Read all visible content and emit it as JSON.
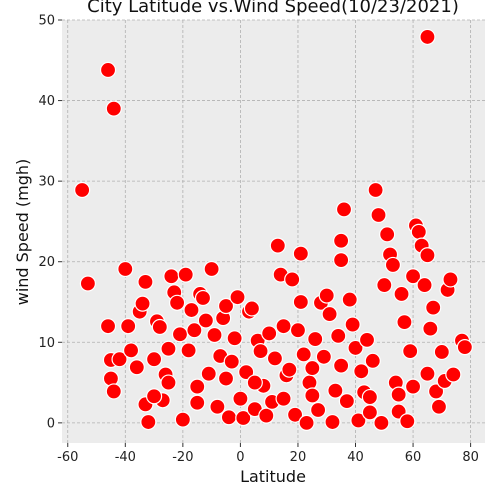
{
  "chart_data": {
    "type": "scatter",
    "title": "City Latitude vs.Wind Speed(10/23/2021)",
    "xlabel": "Latitude",
    "ylabel": "wind Speed (mgh)",
    "xlim": [
      -62,
      85
    ],
    "ylim": [
      -2.5,
      50
    ],
    "xticks": [
      -60,
      -40,
      -20,
      0,
      20,
      40,
      60,
      80
    ],
    "yticks": [
      0,
      10,
      20,
      30,
      40,
      50
    ],
    "grid": true,
    "background_color": "#ececec",
    "marker_color": "#ff0000",
    "marker_edge_color": "#ffffff",
    "series": [
      {
        "points": [
          [
            -55,
            28.9
          ],
          [
            -53,
            17.3
          ],
          [
            -46,
            43.8
          ],
          [
            -44,
            39.0
          ],
          [
            -46,
            12.0
          ],
          [
            -45,
            7.8
          ],
          [
            -45,
            5.5
          ],
          [
            -44,
            3.9
          ],
          [
            -42,
            7.9
          ],
          [
            -40,
            19.1
          ],
          [
            -39,
            12.0
          ],
          [
            -38,
            9.0
          ],
          [
            -36,
            6.9
          ],
          [
            -35,
            13.8
          ],
          [
            -34,
            14.8
          ],
          [
            -33,
            17.5
          ],
          [
            -33,
            2.3
          ],
          [
            -32,
            0.1
          ],
          [
            -30,
            7.9
          ],
          [
            -29,
            12.6
          ],
          [
            -28,
            11.9
          ],
          [
            -27,
            2.8
          ],
          [
            -26,
            6.0
          ],
          [
            -25,
            9.2
          ],
          [
            -24,
            18.2
          ],
          [
            -23,
            16.2
          ],
          [
            -22,
            14.9
          ],
          [
            -21,
            11.0
          ],
          [
            -20,
            0.4
          ],
          [
            -19,
            18.4
          ],
          [
            -18,
            9.0
          ],
          [
            -17,
            14.0
          ],
          [
            -16,
            11.5
          ],
          [
            -15,
            4.5
          ],
          [
            -14,
            16.0
          ],
          [
            -13,
            15.5
          ],
          [
            -12,
            12.7
          ],
          [
            -11,
            6.1
          ],
          [
            -10,
            19.1
          ],
          [
            -9,
            10.9
          ],
          [
            -8,
            2.0
          ],
          [
            -7,
            8.3
          ],
          [
            -6,
            13.0
          ],
          [
            -5,
            14.5
          ],
          [
            -4,
            0.7
          ],
          [
            -3,
            7.6
          ],
          [
            -2,
            10.5
          ],
          [
            -1,
            15.6
          ],
          [
            0,
            3.0
          ],
          [
            1,
            0.6
          ],
          [
            2,
            6.3
          ],
          [
            3,
            13.8
          ],
          [
            4,
            14.2
          ],
          [
            5,
            1.7
          ],
          [
            6,
            10.2
          ],
          [
            7,
            8.9
          ],
          [
            8,
            4.6
          ],
          [
            9,
            0.9
          ],
          [
            10,
            11.1
          ],
          [
            11,
            2.6
          ],
          [
            12,
            8.0
          ],
          [
            13,
            22.0
          ],
          [
            14,
            18.4
          ],
          [
            15,
            12.0
          ],
          [
            16,
            5.9
          ],
          [
            17,
            6.6
          ],
          [
            18,
            17.8
          ],
          [
            19,
            1.0
          ],
          [
            20,
            11.5
          ],
          [
            21,
            21.0
          ],
          [
            21,
            15.0
          ],
          [
            22,
            8.5
          ],
          [
            23,
            0.0
          ],
          [
            24,
            5.0
          ],
          [
            25,
            3.4
          ],
          [
            26,
            10.4
          ],
          [
            27,
            1.6
          ],
          [
            28,
            14.9
          ],
          [
            29,
            8.2
          ],
          [
            30,
            15.8
          ],
          [
            31,
            13.5
          ],
          [
            32,
            0.1
          ],
          [
            33,
            4.0
          ],
          [
            34,
            10.8
          ],
          [
            35,
            22.6
          ],
          [
            35,
            20.2
          ],
          [
            36,
            26.5
          ],
          [
            37,
            2.7
          ],
          [
            38,
            15.3
          ],
          [
            39,
            12.2
          ],
          [
            40,
            9.3
          ],
          [
            41,
            0.3
          ],
          [
            42,
            6.4
          ],
          [
            43,
            3.8
          ],
          [
            44,
            10.3
          ],
          [
            45,
            1.3
          ],
          [
            46,
            7.7
          ],
          [
            47,
            28.9
          ],
          [
            48,
            25.8
          ],
          [
            49,
            0.0
          ],
          [
            50,
            17.1
          ],
          [
            51,
            23.4
          ],
          [
            52,
            20.9
          ],
          [
            53,
            19.6
          ],
          [
            54,
            5.0
          ],
          [
            55,
            1.4
          ],
          [
            56,
            16.0
          ],
          [
            57,
            12.5
          ],
          [
            58,
            0.2
          ],
          [
            59,
            8.9
          ],
          [
            60,
            18.2
          ],
          [
            61,
            24.5
          ],
          [
            62,
            23.7
          ],
          [
            63,
            22.0
          ],
          [
            64,
            17.1
          ],
          [
            65,
            47.9
          ],
          [
            65,
            20.8
          ],
          [
            66,
            11.7
          ],
          [
            67,
            14.3
          ],
          [
            68,
            3.9
          ],
          [
            69,
            2.0
          ],
          [
            70,
            8.8
          ],
          [
            71,
            5.2
          ],
          [
            72,
            16.5
          ],
          [
            73,
            17.8
          ],
          [
            74,
            6.0
          ],
          [
            77,
            10.2
          ],
          [
            78,
            9.4
          ],
          [
            -30,
            3.3
          ],
          [
            -25,
            5.0
          ],
          [
            -15,
            2.5
          ],
          [
            -5,
            5.5
          ],
          [
            5,
            5.0
          ],
          [
            15,
            3.0
          ],
          [
            25,
            6.8
          ],
          [
            35,
            7.1
          ],
          [
            45,
            3.2
          ],
          [
            55,
            3.5
          ],
          [
            60,
            4.5
          ],
          [
            65,
            6.1
          ]
        ]
      }
    ]
  }
}
